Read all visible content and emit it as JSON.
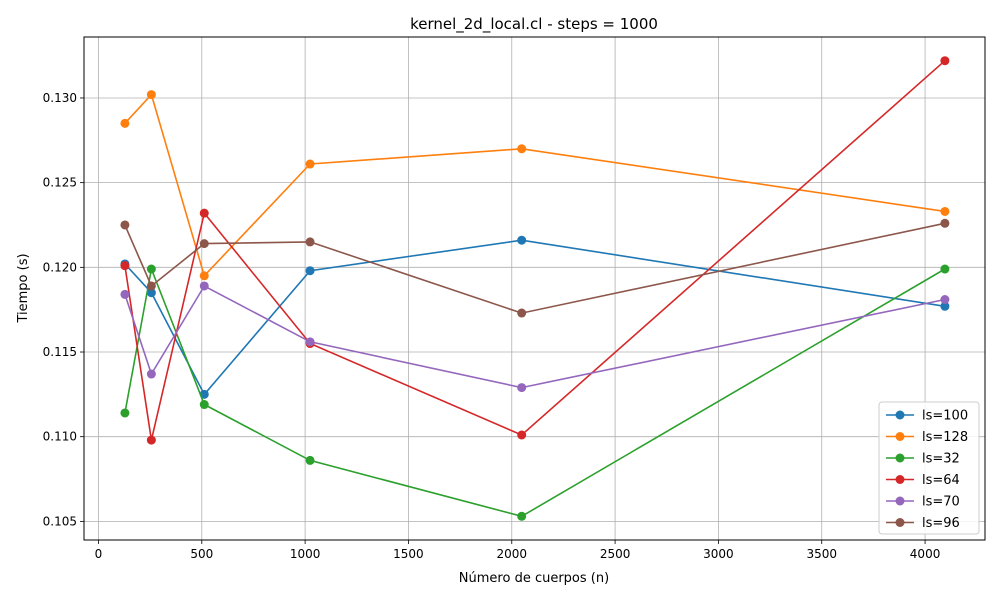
{
  "chart_data": {
    "type": "line",
    "title": "kernel_2d_local.cl - steps = 1000",
    "xlabel": "Número de cuerpos (n)",
    "ylabel": "Tiempo (s)",
    "xlim": [
      -70,
      4290
    ],
    "ylim": [
      0.1039,
      0.1336
    ],
    "grid": true,
    "legend_position": "lower-right",
    "x": [
      128,
      256,
      512,
      1024,
      2048,
      4096
    ],
    "x_ticks": [
      0,
      500,
      1000,
      1500,
      2000,
      2500,
      3000,
      3500,
      4000
    ],
    "y_ticks": [
      0.105,
      0.11,
      0.115,
      0.12,
      0.125,
      0.13
    ],
    "series": [
      {
        "name": "ls=100",
        "color": "#1f77b4",
        "values": [
          0.1202,
          0.1185,
          0.1125,
          0.1198,
          0.1216,
          0.1177
        ]
      },
      {
        "name": "ls=128",
        "color": "#ff7f0e",
        "values": [
          0.1285,
          0.1302,
          0.1195,
          0.1261,
          0.127,
          0.1233
        ]
      },
      {
        "name": "ls=32",
        "color": "#2ca02c",
        "values": [
          0.1114,
          0.1199,
          0.1119,
          0.1086,
          0.1053,
          0.1199
        ]
      },
      {
        "name": "ls=64",
        "color": "#d62728",
        "values": [
          0.1201,
          0.1098,
          0.1232,
          0.1155,
          0.1101,
          0.1322
        ]
      },
      {
        "name": "ls=70",
        "color": "#9467bd",
        "values": [
          0.1184,
          0.1137,
          0.1189,
          0.1156,
          0.1129,
          0.1181
        ]
      },
      {
        "name": "ls=96",
        "color": "#8c564b",
        "values": [
          0.1225,
          0.1189,
          0.1214,
          0.1215,
          0.1173,
          0.1226
        ]
      }
    ]
  }
}
